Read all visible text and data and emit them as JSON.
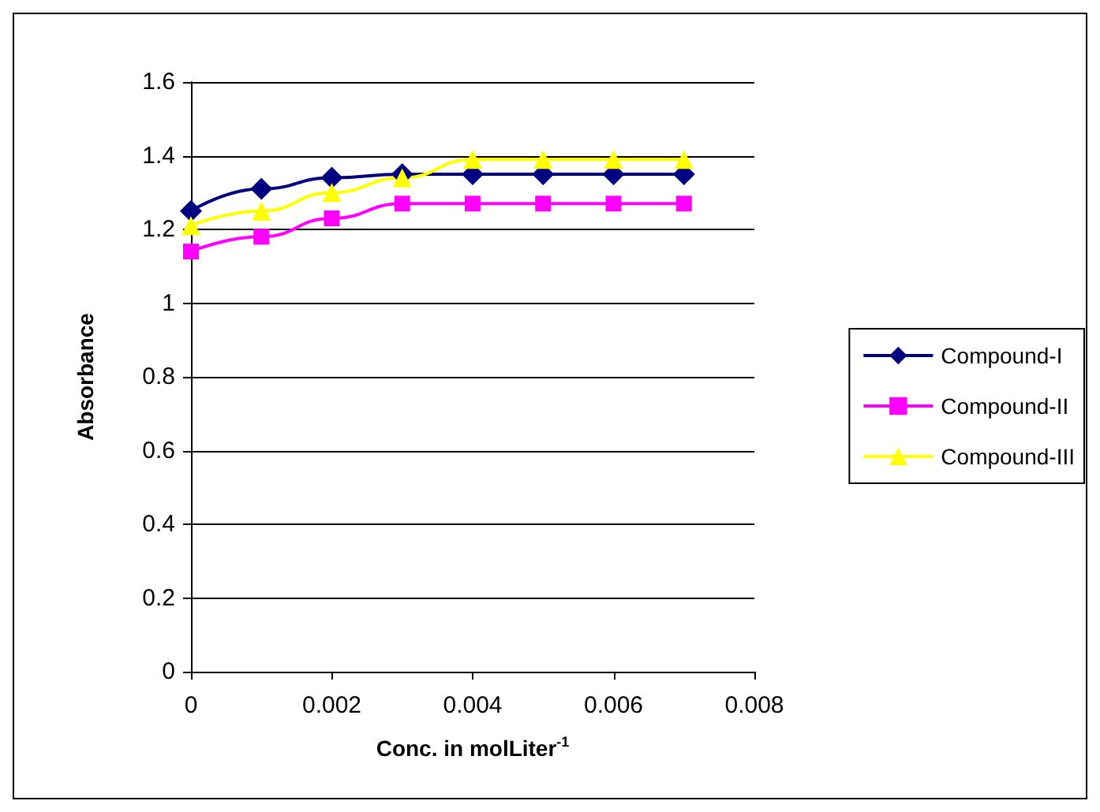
{
  "chart_data": {
    "type": "line",
    "xlabel": "Conc. in molLiter$^{-1}$",
    "ylabel": "Absorbance",
    "x": [
      0,
      0.001,
      0.002,
      0.003,
      0.004,
      0.005,
      0.006,
      0.007
    ],
    "series": [
      {
        "name": "Compound-I",
        "color": "#000080",
        "marker": "diamond",
        "values": [
          1.25,
          1.31,
          1.34,
          1.35,
          1.35,
          1.35,
          1.35,
          1.35
        ]
      },
      {
        "name": "Compound-II",
        "color": "#ff00ff",
        "marker": "square",
        "values": [
          1.14,
          1.18,
          1.23,
          1.27,
          1.27,
          1.27,
          1.27,
          1.27
        ]
      },
      {
        "name": "Compound-III",
        "color": "#ffff00",
        "marker": "triangle",
        "values": [
          1.21,
          1.25,
          1.3,
          1.34,
          1.39,
          1.39,
          1.39,
          1.39
        ]
      }
    ],
    "xlim": [
      0,
      0.008
    ],
    "xticks": [
      0,
      0.002,
      0.004,
      0.006,
      0.008
    ],
    "ylim": [
      0,
      1.6
    ],
    "yticks": [
      0,
      0.2,
      0.4,
      0.6,
      0.8,
      1,
      1.2,
      1.4,
      1.6
    ],
    "grid": "y",
    "legend": "right",
    "line_style": "solid"
  }
}
